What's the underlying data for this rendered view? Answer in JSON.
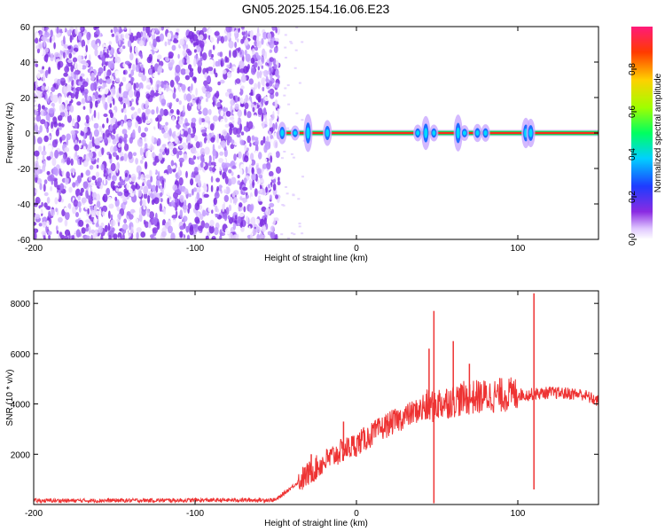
{
  "title": "GN05.2025.154.16.06.E23",
  "chart_data": [
    {
      "type": "heatmap",
      "xlabel": "Height of straight line (km)",
      "ylabel": "Frequency (Hz)",
      "xlim": [
        -200,
        150
      ],
      "ylim": [
        -60,
        60
      ],
      "x_ticks": [
        -200,
        -100,
        0,
        100
      ],
      "y_ticks": [
        -60,
        -40,
        -20,
        0,
        20,
        40,
        60
      ],
      "colorbar": {
        "label": "Normalized spectral amplitude",
        "range": [
          0.0,
          1.0
        ],
        "ticks": [
          "0.0",
          "0.2",
          "0.4",
          "0.6",
          "0.8"
        ]
      },
      "regions": [
        {
          "x_range": [
            -200,
            -48
          ],
          "description_amplitude": 0.15
        },
        {
          "x_range": [
            -48,
            150
          ],
          "line_frequency": 0,
          "line_amplitude": 0.95
        }
      ],
      "bursts_x": [
        -46,
        -38,
        -30,
        -18,
        38,
        43,
        48,
        63,
        67,
        75,
        80,
        105,
        108
      ]
    },
    {
      "type": "line",
      "xlabel": "Height of straight line (km)",
      "ylabel": "SNR (10 * v/v)",
      "xlim": [
        -200,
        150
      ],
      "ylim": [
        0,
        8500
      ],
      "x_ticks": [
        -200,
        -100,
        0,
        100
      ],
      "y_ticks": [
        2000,
        4000,
        6000,
        8000
      ],
      "color": "#ee3333",
      "series": [
        {
          "x": [
            -200,
            -150,
            -100,
            -50,
            -36,
            -30,
            -20,
            -10,
            0,
            10,
            20,
            30,
            40,
            50,
            60,
            70,
            80,
            90,
            100,
            105,
            110,
            120,
            130,
            140,
            150
          ],
          "values": [
            150,
            160,
            170,
            180,
            900,
            1200,
            1700,
            2100,
            2400,
            2800,
            3200,
            3500,
            3800,
            4000,
            4150,
            4250,
            4300,
            4350,
            4400,
            4350,
            4400,
            4450,
            4420,
            4380,
            4100
          ]
        }
      ],
      "spikes": [
        {
          "x": -28,
          "y": 2000
        },
        {
          "x": -8,
          "y": 3300
        },
        {
          "x": 45,
          "y": 6200
        },
        {
          "x": 48,
          "y": 7700
        },
        {
          "x": 60,
          "y": 6500
        },
        {
          "x": 70,
          "y": 5600
        },
        {
          "x": 110,
          "y": 8400
        }
      ],
      "dips": [
        {
          "x": 48,
          "y": 50
        },
        {
          "x": 110,
          "y": 600
        }
      ]
    }
  ]
}
